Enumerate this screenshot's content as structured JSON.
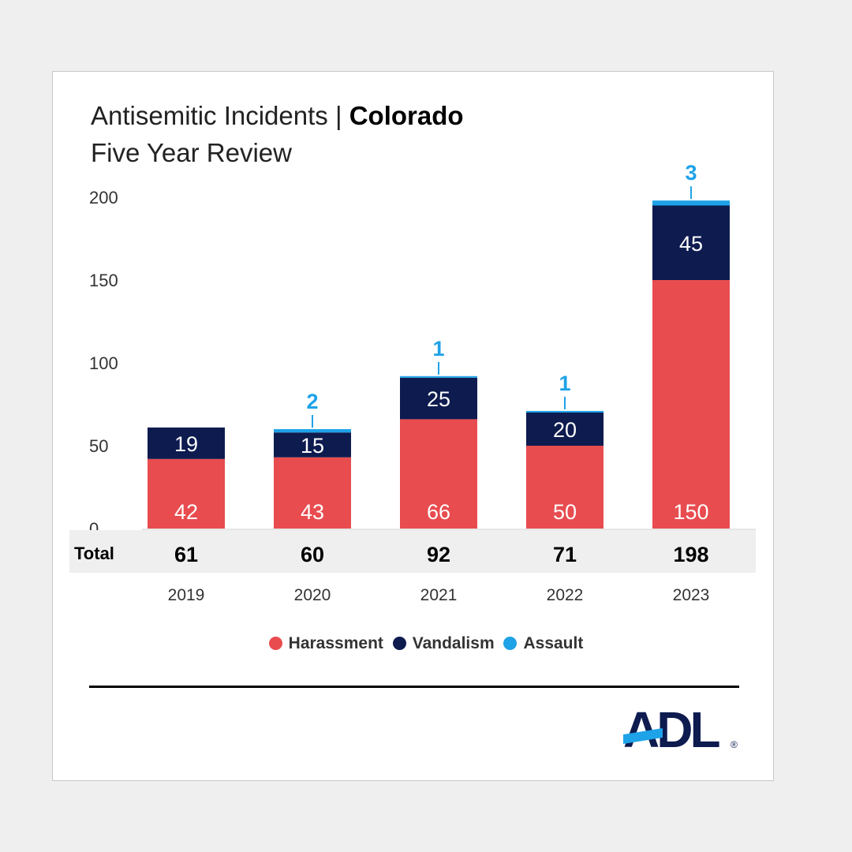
{
  "header": {
    "title_prefix": "Antisemitic Incidents | ",
    "title_bold": "Colorado",
    "subtitle": "Five Year Review"
  },
  "chart_data": {
    "type": "bar",
    "stacked": true,
    "title": "Antisemitic Incidents | Colorado",
    "subtitle": "Five Year Review",
    "categories": [
      "2019",
      "2020",
      "2021",
      "2022",
      "2023"
    ],
    "series": [
      {
        "name": "Harassment",
        "color": "#e84c4f",
        "values": [
          42,
          43,
          66,
          50,
          150
        ]
      },
      {
        "name": "Vandalism",
        "color": "#0d1b4f",
        "values": [
          19,
          15,
          25,
          20,
          45
        ]
      },
      {
        "name": "Assault",
        "color": "#1ea2e8",
        "values": [
          0,
          2,
          1,
          1,
          3
        ]
      }
    ],
    "totals_label": "Total",
    "totals": [
      61,
      60,
      92,
      71,
      198
    ],
    "yticks": [
      0,
      50,
      100,
      150,
      200
    ],
    "ylim": [
      0,
      200
    ],
    "grid": false,
    "legend": "bottom-center"
  },
  "brand": {
    "logo_text": "ADL",
    "registered": "®",
    "navy": "#0d1b4f",
    "blue": "#1ea2e8"
  }
}
